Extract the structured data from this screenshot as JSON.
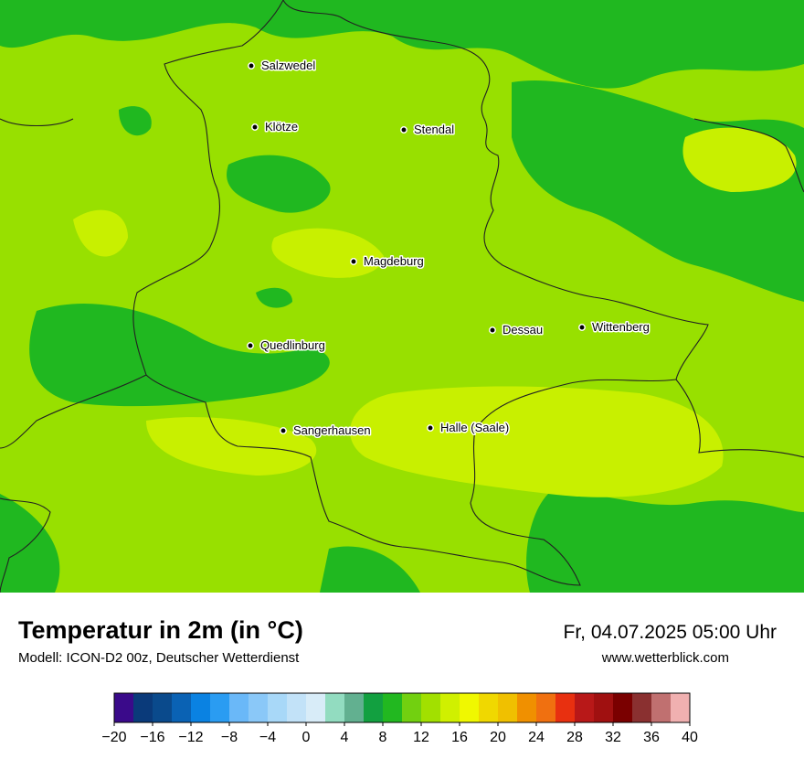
{
  "map": {
    "cities": [
      "Salzwedel",
      "Klötze",
      "Stendal",
      "Magdeburg",
      "Dessau",
      "Wittenberg",
      "Quedlinburg",
      "Sangerhausen",
      "Halle (Saale)"
    ]
  },
  "footer": {
    "title": "Temperatur in 2m (in °C)",
    "model": "Modell: ICON-D2 00z, Deutscher Wetterdienst",
    "datetime": "Fr, 04.07.2025 05:00 Uhr",
    "website": "www.wetterblick.com"
  },
  "colorbar": {
    "range": [
      -20,
      40
    ],
    "colors": [
      "#3a0a8a",
      "#0a3a7a",
      "#0a4a8c",
      "#0a62b4",
      "#0a82e2",
      "#2a9cf2",
      "#6ab8f8",
      "#8ac8f8",
      "#a8d8f8",
      "#c2e2f8",
      "#d8ecf8",
      "#92dcc0",
      "#62b090",
      "#12a040",
      "#22b820",
      "#72d010",
      "#a2e000",
      "#d0f000",
      "#f0f800",
      "#f0d800",
      "#f0c000",
      "#f09000",
      "#f07010",
      "#e83010",
      "#b81818",
      "#a01010",
      "#7a0000",
      "#8a3030",
      "#c07070",
      "#f0b0b0"
    ],
    "ticks": [
      {
        "value": -20,
        "label": "−20"
      },
      {
        "value": -16,
        "label": "−16"
      },
      {
        "value": -12,
        "label": "−12"
      },
      {
        "value": -8,
        "label": "−8"
      },
      {
        "value": -4,
        "label": "−4"
      },
      0,
      4,
      8,
      12,
      16,
      20,
      24,
      28,
      32,
      36,
      40
    ]
  }
}
